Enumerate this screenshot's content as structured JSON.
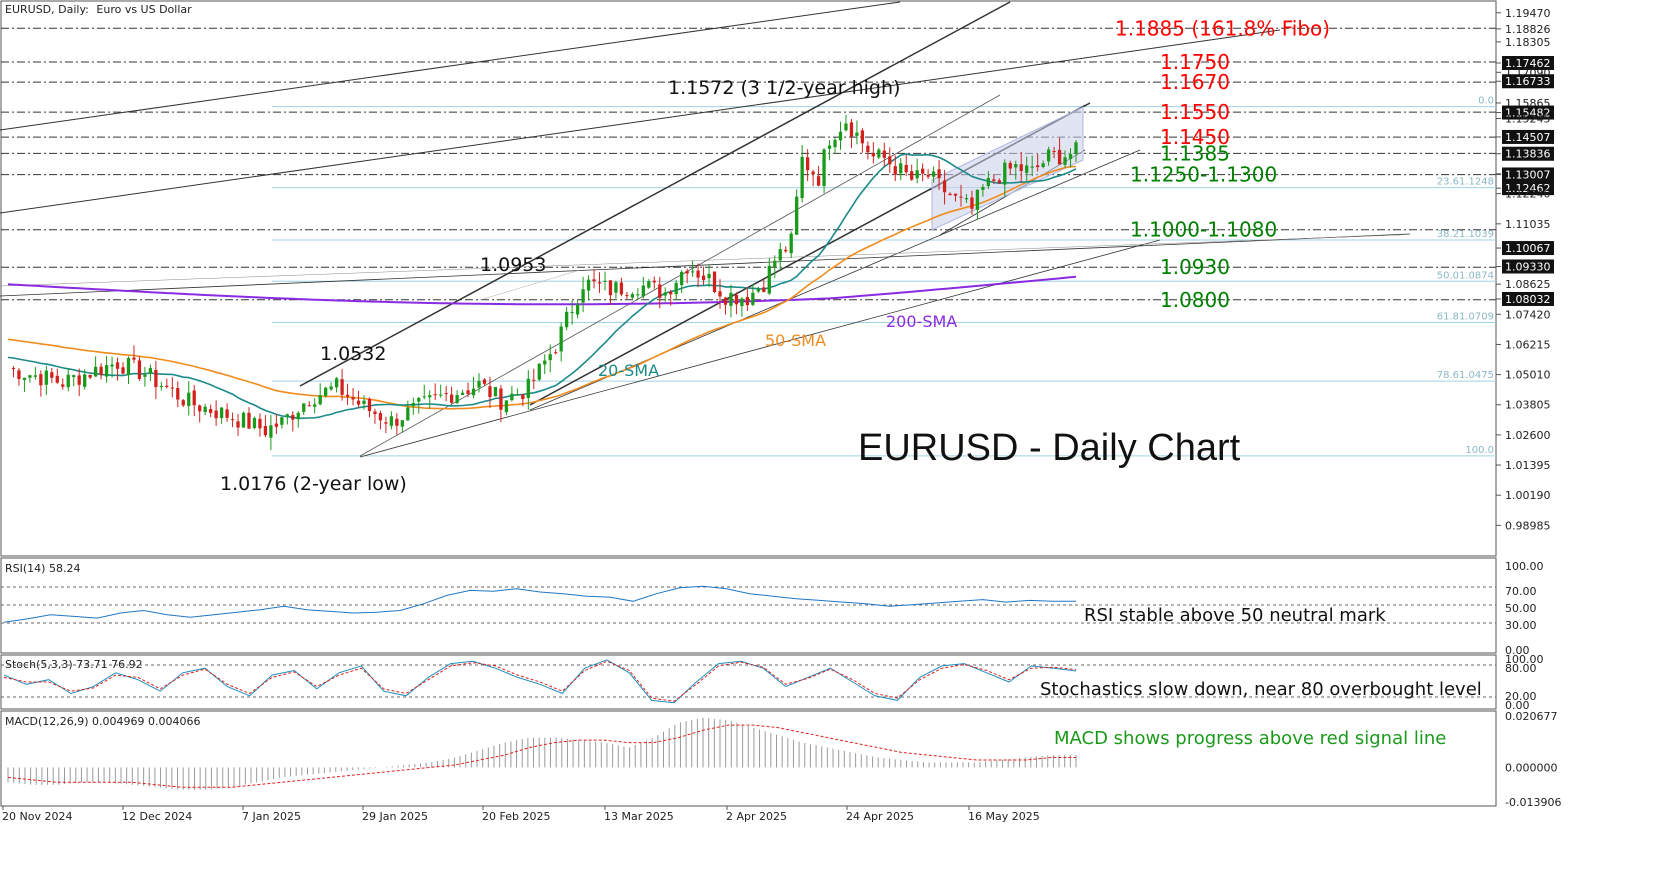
{
  "header": {
    "symbol": "EURUSD, Daily:",
    "description": "Euro vs US Dollar"
  },
  "chart_data": [
    {
      "type": "candlestick",
      "title": "EURUSD - Daily Chart",
      "ylim": [
        0.978,
        1.199
      ],
      "price_axis_labels": [
        "1.19470",
        "1.18826",
        "1.18305",
        "1.17462",
        "1.17090",
        "1.16733",
        "1.15865",
        "1.15482",
        "1.15245",
        "1.14507",
        "1.13836",
        "1.13035",
        "1.13007",
        "1.12462",
        "1.12240",
        "1.11035",
        "1.10067",
        "1.09330",
        "1.08625",
        "1.08032",
        "1.07420",
        "1.06215",
        "1.05010",
        "1.03805",
        "1.02600",
        "1.01395",
        "1.00190",
        "0.98985"
      ],
      "x_axis_labels": [
        "20 Nov 2024",
        "12 Dec 2024",
        "7 Jan 2025",
        "29 Jan 2025",
        "20 Feb 2025",
        "13 Mar 2025",
        "2 Apr 2025",
        "24 Apr 2025",
        "16 May 2025"
      ],
      "close_path": [
        [
          0,
          1.0525
        ],
        [
          10,
          1.047
        ],
        [
          20,
          1.055
        ],
        [
          25,
          1.0505
        ],
        [
          33,
          1.039
        ],
        [
          40,
          1.034
        ],
        [
          47,
          1.028
        ],
        [
          50,
          1.031
        ],
        [
          55,
          1.041
        ],
        [
          60,
          1.045
        ],
        [
          65,
          1.037
        ],
        [
          70,
          1.0315
        ],
        [
          75,
          1.037
        ],
        [
          80,
          1.042
        ],
        [
          86,
          1.046
        ],
        [
          90,
          1.04
        ],
        [
          95,
          1.0445
        ],
        [
          100,
          1.062
        ],
        [
          105,
          1.087
        ],
        [
          110,
          1.084
        ],
        [
          115,
          1.086
        ],
        [
          120,
          1.083
        ],
        [
          124,
          1.094
        ],
        [
          128,
          1.088
        ],
        [
          131,
          1.082
        ],
        [
          135,
          1.081
        ],
        [
          138,
          1.087
        ],
        [
          140,
          1.096
        ],
        [
          143,
          1.103
        ],
        [
          145,
          1.136
        ],
        [
          148,
          1.129
        ],
        [
          150,
          1.145
        ],
        [
          153,
          1.152
        ],
        [
          156,
          1.143
        ],
        [
          158,
          1.137
        ],
        [
          160,
          1.1365
        ],
        [
          162,
          1.133
        ],
        [
          165,
          1.128
        ],
        [
          168,
          1.1295
        ],
        [
          170,
          1.1255
        ],
        [
          173,
          1.12
        ],
        [
          176,
          1.116
        ],
        [
          178,
          1.124
        ],
        [
          181,
          1.13
        ],
        [
          184,
          1.133
        ],
        [
          187,
          1.131
        ],
        [
          190,
          1.137
        ],
        [
          193,
          1.138
        ],
        [
          195,
          1.139
        ]
      ],
      "levels": [
        {
          "value": 1.1885,
          "label": "1.1885 (161.8% Fibo)",
          "color": "#ff0000"
        },
        {
          "value": 1.175,
          "label": "1.1750",
          "color": "#ff0000"
        },
        {
          "value": 1.167,
          "label": "1.1670",
          "color": "#ff0000"
        },
        {
          "value": 1.155,
          "label": "1.1550",
          "color": "#ff0000"
        },
        {
          "value": 1.145,
          "label": "1.1450",
          "color": "#ff0000"
        },
        {
          "value": 1.1385,
          "label": "1.1385",
          "color": "#008000"
        },
        {
          "value": 1.13,
          "label": "1.1250-1.1300",
          "color": "#008000"
        },
        {
          "value": 1.108,
          "label": "1.1000-1.1080",
          "color": "#008000"
        },
        {
          "value": 1.093,
          "label": "1.0930",
          "color": "#008000"
        },
        {
          "value": 1.08,
          "label": "1.0800",
          "color": "#008000"
        }
      ],
      "fibo_levels": [
        {
          "label": "0.0",
          "value": 1.1572
        },
        {
          "label": "23.61.1248",
          "value": 1.1248
        },
        {
          "label": "38.21.1039",
          "value": 1.1039
        },
        {
          "label": "50.01.0874",
          "value": 1.0874
        },
        {
          "label": "61.81.0709",
          "value": 1.0709
        },
        {
          "label": "78.61.0475",
          "value": 1.0475
        },
        {
          "label": "100.0",
          "value": 1.0176
        }
      ],
      "annotations": [
        {
          "text": "1.1572 (3 1/2-year high)",
          "value": 1.1572
        },
        {
          "text": "1.0953",
          "value": 1.0953
        },
        {
          "text": "1.0532",
          "value": 1.0532
        },
        {
          "text": "1.0176 (2-year low)",
          "value": 1.0176
        }
      ],
      "series": [
        {
          "name": "20-SMA",
          "color": "#1b8a8a"
        },
        {
          "name": "50-SMA",
          "color": "#f08c1e"
        },
        {
          "name": "200-SMA",
          "color": "#8a2be2"
        }
      ]
    },
    {
      "type": "line",
      "title": "RSI(14) 58.24",
      "ylim": [
        0,
        100
      ],
      "ticks": [
        "100.00",
        "70.00",
        "50.00",
        "30.00",
        "0.00"
      ],
      "note": "RSI stable above 50 neutral mark",
      "values": [
        33,
        37,
        42,
        40,
        38,
        44,
        47,
        42,
        39,
        42,
        45,
        48,
        52,
        48,
        46,
        44,
        45,
        47,
        55,
        65,
        71,
        70,
        73,
        69,
        67,
        64,
        63,
        58,
        67,
        74,
        76,
        73,
        67,
        64,
        61,
        59,
        57,
        55,
        52,
        54,
        56,
        58,
        60,
        57,
        59,
        58,
        58
      ],
      "color": "#1f77c4"
    },
    {
      "type": "line",
      "title": "Stoch(5,3,3) 73.71 76.92",
      "ylim": [
        0,
        100
      ],
      "ticks": [
        "100.00",
        "80.00",
        "20.00",
        "0.00"
      ],
      "note": "Stochastics slow down, near 80 overbought level",
      "main_color": "#1f8fbf",
      "signal_color": "#e0201e",
      "main_values": [
        65,
        45,
        55,
        25,
        40,
        70,
        55,
        30,
        70,
        80,
        40,
        20,
        65,
        75,
        35,
        70,
        85,
        30,
        20,
        60,
        90,
        95,
        80,
        60,
        45,
        25,
        80,
        98,
        70,
        10,
        5,
        50,
        90,
        95,
        80,
        40,
        60,
        80,
        50,
        20,
        10,
        60,
        85,
        90,
        70,
        50,
        85,
        80,
        74
      ],
      "signal_values": [
        60,
        50,
        50,
        30,
        37,
        65,
        60,
        35,
        65,
        78,
        45,
        25,
        60,
        72,
        40,
        65,
        80,
        35,
        25,
        55,
        85,
        92,
        85,
        65,
        50,
        30,
        75,
        95,
        75,
        15,
        8,
        45,
        85,
        93,
        82,
        45,
        58,
        78,
        55,
        25,
        15,
        55,
        80,
        88,
        75,
        55,
        80,
        82,
        77
      ]
    },
    {
      "type": "bar",
      "title": "MACD(12,26,9) 0.004969 0.004066",
      "ylim": [
        -0.013906,
        0.020677
      ],
      "ticks": [
        "0.020677",
        "0.000000",
        "-0.013906"
      ],
      "note": "MACD shows progress above red signal line",
      "histogram": [
        -0.006,
        -0.007,
        -0.007,
        -0.006,
        -0.006,
        -0.007,
        -0.008,
        -0.009,
        -0.009,
        -0.008,
        -0.006,
        -0.004,
        -0.003,
        -0.002,
        -0.001,
        0.0,
        0.001,
        0.002,
        0.004,
        0.007,
        0.01,
        0.012,
        0.012,
        0.011,
        0.01,
        0.008,
        0.012,
        0.018,
        0.02,
        0.019,
        0.016,
        0.013,
        0.01,
        0.008,
        0.006,
        0.004,
        0.003,
        0.002,
        0.002,
        0.002,
        0.003,
        0.004,
        0.005,
        0.005
      ],
      "signal": [
        -0.004,
        -0.005,
        -0.006,
        -0.006,
        -0.006,
        -0.006,
        -0.007,
        -0.008,
        -0.008,
        -0.008,
        -0.007,
        -0.006,
        -0.005,
        -0.004,
        -0.003,
        -0.002,
        -0.001,
        0.0,
        0.001,
        0.003,
        0.005,
        0.008,
        0.01,
        0.011,
        0.011,
        0.01,
        0.01,
        0.012,
        0.015,
        0.017,
        0.017,
        0.016,
        0.014,
        0.012,
        0.01,
        0.008,
        0.006,
        0.005,
        0.004,
        0.003,
        0.003,
        0.003,
        0.004,
        0.004
      ],
      "histogram_color": "#9a9a9a",
      "signal_color": "#e0201e"
    }
  ],
  "labels": {
    "sma20": "20-SMA",
    "sma50": "50-SMA",
    "sma200": "200-SMA"
  }
}
